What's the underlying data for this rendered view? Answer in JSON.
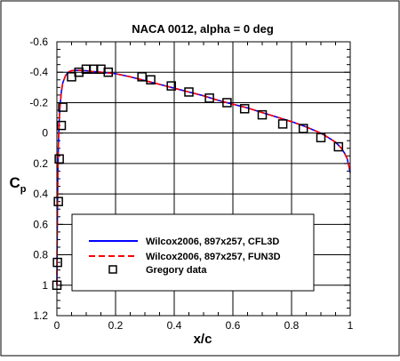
{
  "chart_data": {
    "type": "line",
    "title": "NACA 0012, alpha = 0 deg",
    "xlabel": "x/c",
    "ylabel": "C",
    "ylabel_subscript": "p",
    "xlim": [
      0,
      1
    ],
    "ylim": [
      1.2,
      -0.6
    ],
    "y_axis_inverted": true,
    "grid": true,
    "legend_position": "lower-left",
    "x_ticks": [
      0,
      0.2,
      0.4,
      0.6,
      0.8,
      1
    ],
    "x_tick_labels": [
      "0",
      "0.2",
      "0.4",
      "0.6",
      "0.8",
      "1"
    ],
    "y_ticks": [
      -0.6,
      -0.4,
      -0.2,
      0,
      0.2,
      0.4,
      0.6,
      0.8,
      1,
      1.2
    ],
    "y_tick_labels": [
      "-0.6",
      "-0.4",
      "-0.2",
      "0",
      "0.2",
      "0.4",
      "0.6",
      "0.8",
      "1",
      "1.2"
    ],
    "series": [
      {
        "name": "Wilcox2006, 897x257, CFL3D",
        "style": "solid-line",
        "color": "#0000ff",
        "x": [
          0,
          0.0005,
          0.001,
          0.002,
          0.003,
          0.005,
          0.0075,
          0.01,
          0.015,
          0.02,
          0.03,
          0.04,
          0.05,
          0.06,
          0.08,
          0.1,
          0.12,
          0.15,
          0.2,
          0.25,
          0.3,
          0.35,
          0.4,
          0.45,
          0.5,
          0.55,
          0.6,
          0.65,
          0.7,
          0.75,
          0.8,
          0.85,
          0.9,
          0.93,
          0.95,
          0.97,
          0.98,
          0.99,
          1.0
        ],
        "y": [
          1.0,
          0.85,
          0.7,
          0.48,
          0.3,
          0.08,
          -0.07,
          -0.16,
          -0.27,
          -0.33,
          -0.38,
          -0.402,
          -0.41,
          -0.412,
          -0.412,
          -0.41,
          -0.405,
          -0.4,
          -0.39,
          -0.37,
          -0.345,
          -0.32,
          -0.295,
          -0.27,
          -0.245,
          -0.215,
          -0.19,
          -0.165,
          -0.135,
          -0.105,
          -0.075,
          -0.04,
          0.0,
          0.035,
          0.06,
          0.1,
          0.13,
          0.17,
          0.26
        ]
      },
      {
        "name": "Wilcox2006, 897x257, FUN3D",
        "style": "dashed-line",
        "color": "#ff0000",
        "x": [
          0,
          0.0005,
          0.001,
          0.002,
          0.003,
          0.005,
          0.0075,
          0.01,
          0.015,
          0.02,
          0.03,
          0.04,
          0.05,
          0.06,
          0.08,
          0.1,
          0.12,
          0.15,
          0.2,
          0.25,
          0.3,
          0.35,
          0.4,
          0.45,
          0.5,
          0.55,
          0.6,
          0.65,
          0.7,
          0.75,
          0.8,
          0.85,
          0.9,
          0.93,
          0.95,
          0.97,
          0.98,
          0.99,
          1.0
        ],
        "y": [
          1.0,
          0.85,
          0.7,
          0.48,
          0.3,
          0.08,
          -0.07,
          -0.16,
          -0.27,
          -0.33,
          -0.38,
          -0.402,
          -0.41,
          -0.412,
          -0.412,
          -0.41,
          -0.405,
          -0.4,
          -0.39,
          -0.37,
          -0.345,
          -0.32,
          -0.295,
          -0.27,
          -0.245,
          -0.215,
          -0.19,
          -0.165,
          -0.135,
          -0.105,
          -0.075,
          -0.04,
          0.0,
          0.035,
          0.06,
          0.1,
          0.13,
          0.17,
          0.26
        ]
      },
      {
        "name": "Gregory data",
        "style": "square-markers",
        "color": "#000000",
        "x": [
          0.0,
          0.002,
          0.005,
          0.008,
          0.015,
          0.02,
          0.05,
          0.075,
          0.1,
          0.125,
          0.15,
          0.175,
          0.29,
          0.32,
          0.39,
          0.45,
          0.52,
          0.58,
          0.64,
          0.7,
          0.77,
          0.84,
          0.9,
          0.96
        ],
        "y": [
          1.0,
          0.85,
          0.45,
          0.17,
          -0.05,
          -0.17,
          -0.37,
          -0.4,
          -0.42,
          -0.42,
          -0.42,
          -0.4,
          -0.37,
          -0.35,
          -0.31,
          -0.27,
          -0.23,
          -0.2,
          -0.16,
          -0.12,
          -0.06,
          -0.03,
          0.03,
          0.09
        ]
      }
    ]
  }
}
